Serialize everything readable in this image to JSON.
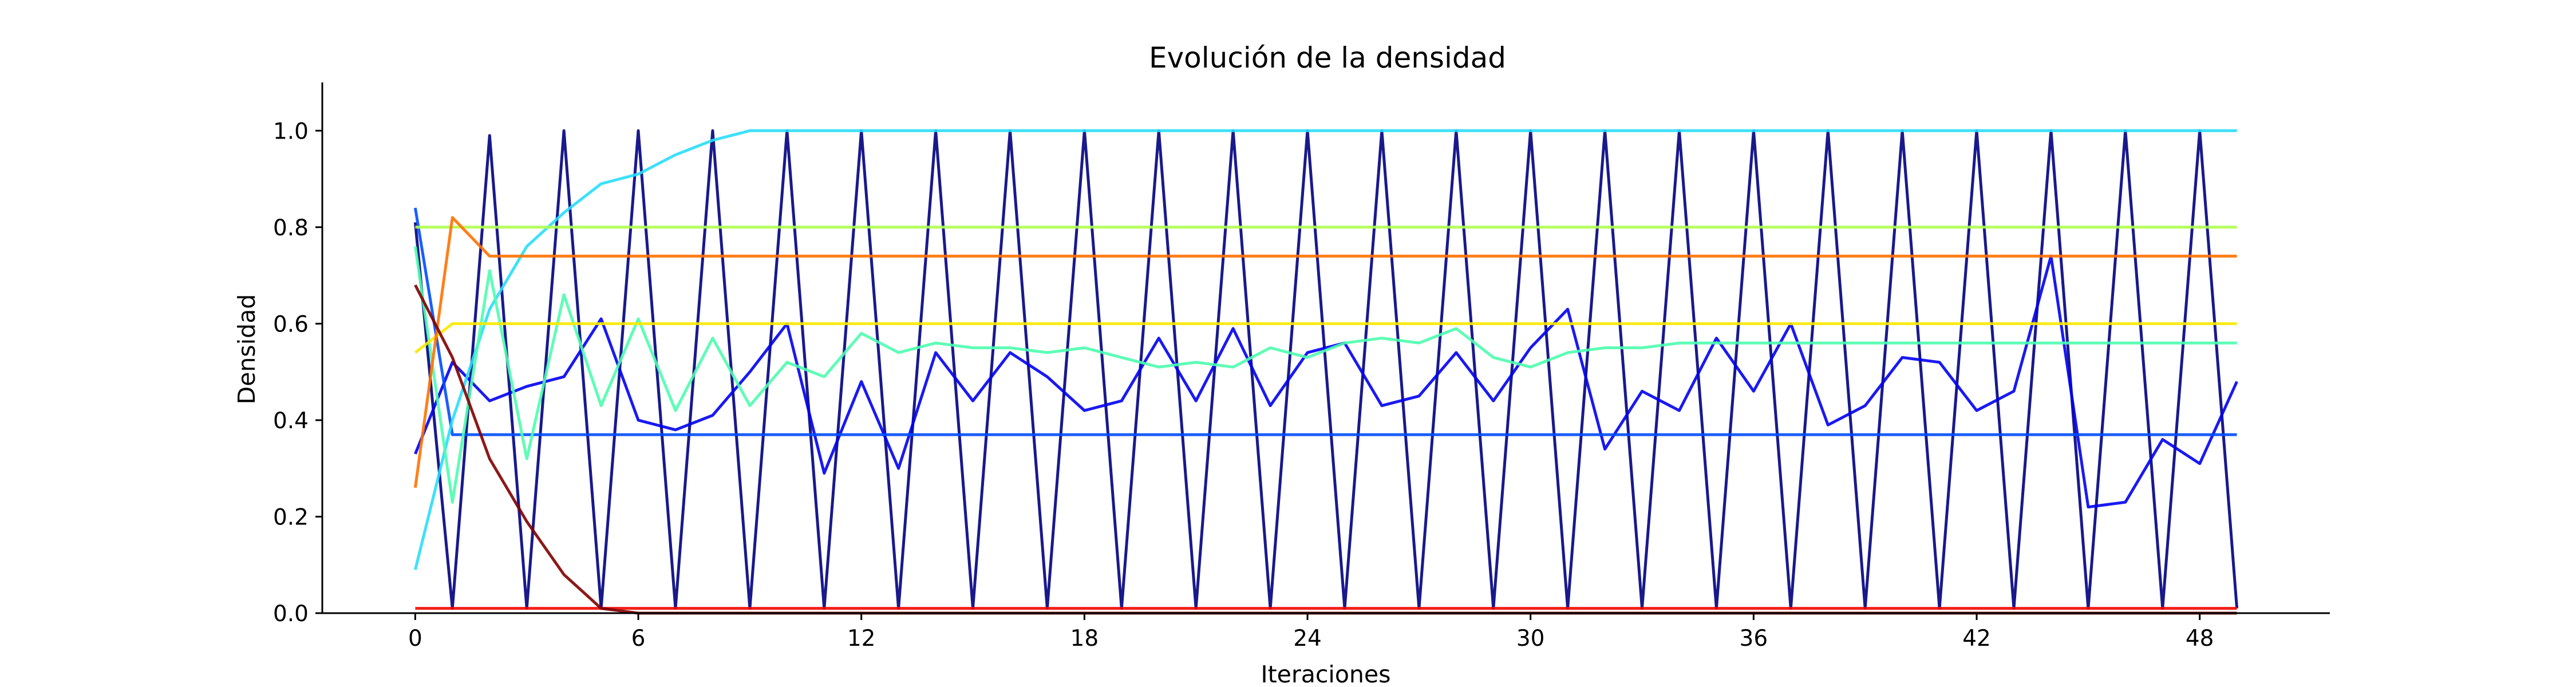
{
  "chart_data": {
    "type": "line",
    "title": "Evolución de la densidad",
    "xlabel": "Iteraciones",
    "ylabel": "Densidad",
    "xlim": [
      -2.5,
      51.5
    ],
    "ylim": [
      0,
      1.1
    ],
    "xticks": [
      0,
      6,
      12,
      18,
      24,
      30,
      36,
      42,
      48
    ],
    "yticks": [
      0.0,
      0.2,
      0.4,
      0.6,
      0.8,
      1.0
    ],
    "xtick_labels": [
      "0",
      "6",
      "12",
      "18",
      "24",
      "30",
      "36",
      "42",
      "48"
    ],
    "ytick_labels": [
      "0.0",
      "0.2",
      "0.4",
      "0.6",
      "0.8",
      "1.0"
    ],
    "grid": false,
    "legend": "none",
    "series": [
      {
        "color": "#000080",
        "values": [
          0.81,
          0.01,
          0.99,
          0.01,
          1.0,
          0.01,
          1.0,
          0.01,
          1.0,
          0.01,
          1.0,
          0.01,
          1.0,
          0.01,
          1.0,
          0.01,
          1.0,
          0.01,
          1.0,
          0.01,
          1.0,
          0.01,
          1.0,
          0.01,
          1.0,
          0.01,
          1.0,
          0.01,
          1.0,
          0.01,
          1.0,
          0.01,
          1.0,
          0.01,
          1.0,
          0.01,
          1.0,
          0.01,
          1.0,
          0.01,
          1.0,
          0.01,
          1.0,
          0.01,
          1.0,
          0.01,
          1.0,
          0.01,
          1.0,
          0.01
        ]
      },
      {
        "color": "#0000f1",
        "values": [
          0.33,
          0.52,
          0.44,
          0.47,
          0.49,
          0.61,
          0.4,
          0.38,
          0.41,
          0.5,
          0.6,
          0.29,
          0.48,
          0.3,
          0.54,
          0.44,
          0.54,
          0.49,
          0.42,
          0.44,
          0.57,
          0.44,
          0.59,
          0.43,
          0.54,
          0.56,
          0.43,
          0.45,
          0.54,
          0.44,
          0.55,
          0.63,
          0.34,
          0.46,
          0.42,
          0.57,
          0.46,
          0.6,
          0.39,
          0.43,
          0.53,
          0.52,
          0.42,
          0.46,
          0.74,
          0.22,
          0.23,
          0.36,
          0.31,
          0.48
        ]
      },
      {
        "color": "#004cff",
        "values": [
          0.84,
          0.37,
          0.37,
          0.37,
          0.37,
          0.37,
          0.37,
          0.37,
          0.37,
          0.37,
          0.37,
          0.37,
          0.37,
          0.37,
          0.37,
          0.37,
          0.37,
          0.37,
          0.37,
          0.37,
          0.37,
          0.37,
          0.37,
          0.37,
          0.37,
          0.37,
          0.37,
          0.37,
          0.37,
          0.37,
          0.37,
          0.37,
          0.37,
          0.37,
          0.37,
          0.37,
          0.37,
          0.37,
          0.37,
          0.37,
          0.37,
          0.37,
          0.37,
          0.37,
          0.37,
          0.37,
          0.37,
          0.37,
          0.37,
          0.37
        ]
      },
      {
        "color": "#29ddfa",
        "values": [
          0.09,
          0.4,
          0.63,
          0.76,
          0.83,
          0.89,
          0.91,
          0.95,
          0.98,
          1.0,
          1.0,
          1.0,
          1.0,
          1.0,
          1.0,
          1.0,
          1.0,
          1.0,
          1.0,
          1.0,
          1.0,
          1.0,
          1.0,
          1.0,
          1.0,
          1.0,
          1.0,
          1.0,
          1.0,
          1.0,
          1.0,
          1.0,
          1.0,
          1.0,
          1.0,
          1.0,
          1.0,
          1.0,
          1.0,
          1.0,
          1.0,
          1.0,
          1.0,
          1.0,
          1.0,
          1.0,
          1.0,
          1.0,
          1.0,
          1.0
        ]
      },
      {
        "color": "#4cfdae",
        "values": [
          0.76,
          0.23,
          0.71,
          0.32,
          0.66,
          0.43,
          0.61,
          0.42,
          0.57,
          0.43,
          0.52,
          0.49,
          0.58,
          0.54,
          0.56,
          0.55,
          0.55,
          0.54,
          0.55,
          0.53,
          0.51,
          0.52,
          0.51,
          0.55,
          0.53,
          0.56,
          0.57,
          0.56,
          0.59,
          0.53,
          0.51,
          0.54,
          0.55,
          0.55,
          0.56,
          0.56,
          0.56,
          0.56,
          0.56,
          0.56,
          0.56,
          0.56,
          0.56,
          0.56,
          0.56,
          0.56,
          0.56,
          0.56,
          0.56,
          0.56
        ]
      },
      {
        "color": "#adff4c",
        "values": [
          0.8,
          0.8,
          0.8,
          0.8,
          0.8,
          0.8,
          0.8,
          0.8,
          0.8,
          0.8,
          0.8,
          0.8,
          0.8,
          0.8,
          0.8,
          0.8,
          0.8,
          0.8,
          0.8,
          0.8,
          0.8,
          0.8,
          0.8,
          0.8,
          0.8,
          0.8,
          0.8,
          0.8,
          0.8,
          0.8,
          0.8,
          0.8,
          0.8,
          0.8,
          0.8,
          0.8,
          0.8,
          0.8,
          0.8,
          0.8,
          0.8,
          0.8,
          0.8,
          0.8,
          0.8,
          0.8,
          0.8,
          0.8,
          0.8,
          0.8
        ]
      },
      {
        "color": "#f9e900",
        "values": [
          0.54,
          0.6,
          0.6,
          0.6,
          0.6,
          0.6,
          0.6,
          0.6,
          0.6,
          0.6,
          0.6,
          0.6,
          0.6,
          0.6,
          0.6,
          0.6,
          0.6,
          0.6,
          0.6,
          0.6,
          0.6,
          0.6,
          0.6,
          0.6,
          0.6,
          0.6,
          0.6,
          0.6,
          0.6,
          0.6,
          0.6,
          0.6,
          0.6,
          0.6,
          0.6,
          0.6,
          0.6,
          0.6,
          0.6,
          0.6,
          0.6,
          0.6,
          0.6,
          0.6,
          0.6,
          0.6,
          0.6,
          0.6,
          0.6,
          0.6
        ]
      },
      {
        "color": "#ff7100",
        "values": [
          0.26,
          0.82,
          0.74,
          0.74,
          0.74,
          0.74,
          0.74,
          0.74,
          0.74,
          0.74,
          0.74,
          0.74,
          0.74,
          0.74,
          0.74,
          0.74,
          0.74,
          0.74,
          0.74,
          0.74,
          0.74,
          0.74,
          0.74,
          0.74,
          0.74,
          0.74,
          0.74,
          0.74,
          0.74,
          0.74,
          0.74,
          0.74,
          0.74,
          0.74,
          0.74,
          0.74,
          0.74,
          0.74,
          0.74,
          0.74,
          0.74,
          0.74,
          0.74,
          0.74,
          0.74,
          0.74,
          0.74,
          0.74,
          0.74,
          0.74
        ]
      },
      {
        "color": "#f10800",
        "values": [
          0.01,
          0.01,
          0.01,
          0.01,
          0.01,
          0.01,
          0.01,
          0.01,
          0.01,
          0.01,
          0.01,
          0.01,
          0.01,
          0.01,
          0.01,
          0.01,
          0.01,
          0.01,
          0.01,
          0.01,
          0.01,
          0.01,
          0.01,
          0.01,
          0.01,
          0.01,
          0.01,
          0.01,
          0.01,
          0.01,
          0.01,
          0.01,
          0.01,
          0.01,
          0.01,
          0.01,
          0.01,
          0.01,
          0.01,
          0.01,
          0.01,
          0.01,
          0.01,
          0.01,
          0.01,
          0.01,
          0.01,
          0.01,
          0.01,
          0.01
        ]
      },
      {
        "color": "#800000",
        "values": [
          0.68,
          0.53,
          0.32,
          0.19,
          0.08,
          0.01,
          0.0,
          0.0,
          0.0,
          0.0,
          0.0,
          0.0,
          0.0,
          0.0,
          0.0,
          0.0,
          0.0,
          0.0,
          0.0,
          0.0,
          0.0,
          0.0,
          0.0,
          0.0,
          0.0,
          0.0,
          0.0,
          0.0,
          0.0,
          0.0,
          0.0,
          0.0,
          0.0,
          0.0,
          0.0,
          0.0,
          0.0,
          0.0,
          0.0,
          0.0,
          0.0,
          0.0,
          0.0,
          0.0,
          0.0,
          0.0,
          0.0,
          0.0,
          0.0,
          0.0
        ]
      }
    ]
  }
}
